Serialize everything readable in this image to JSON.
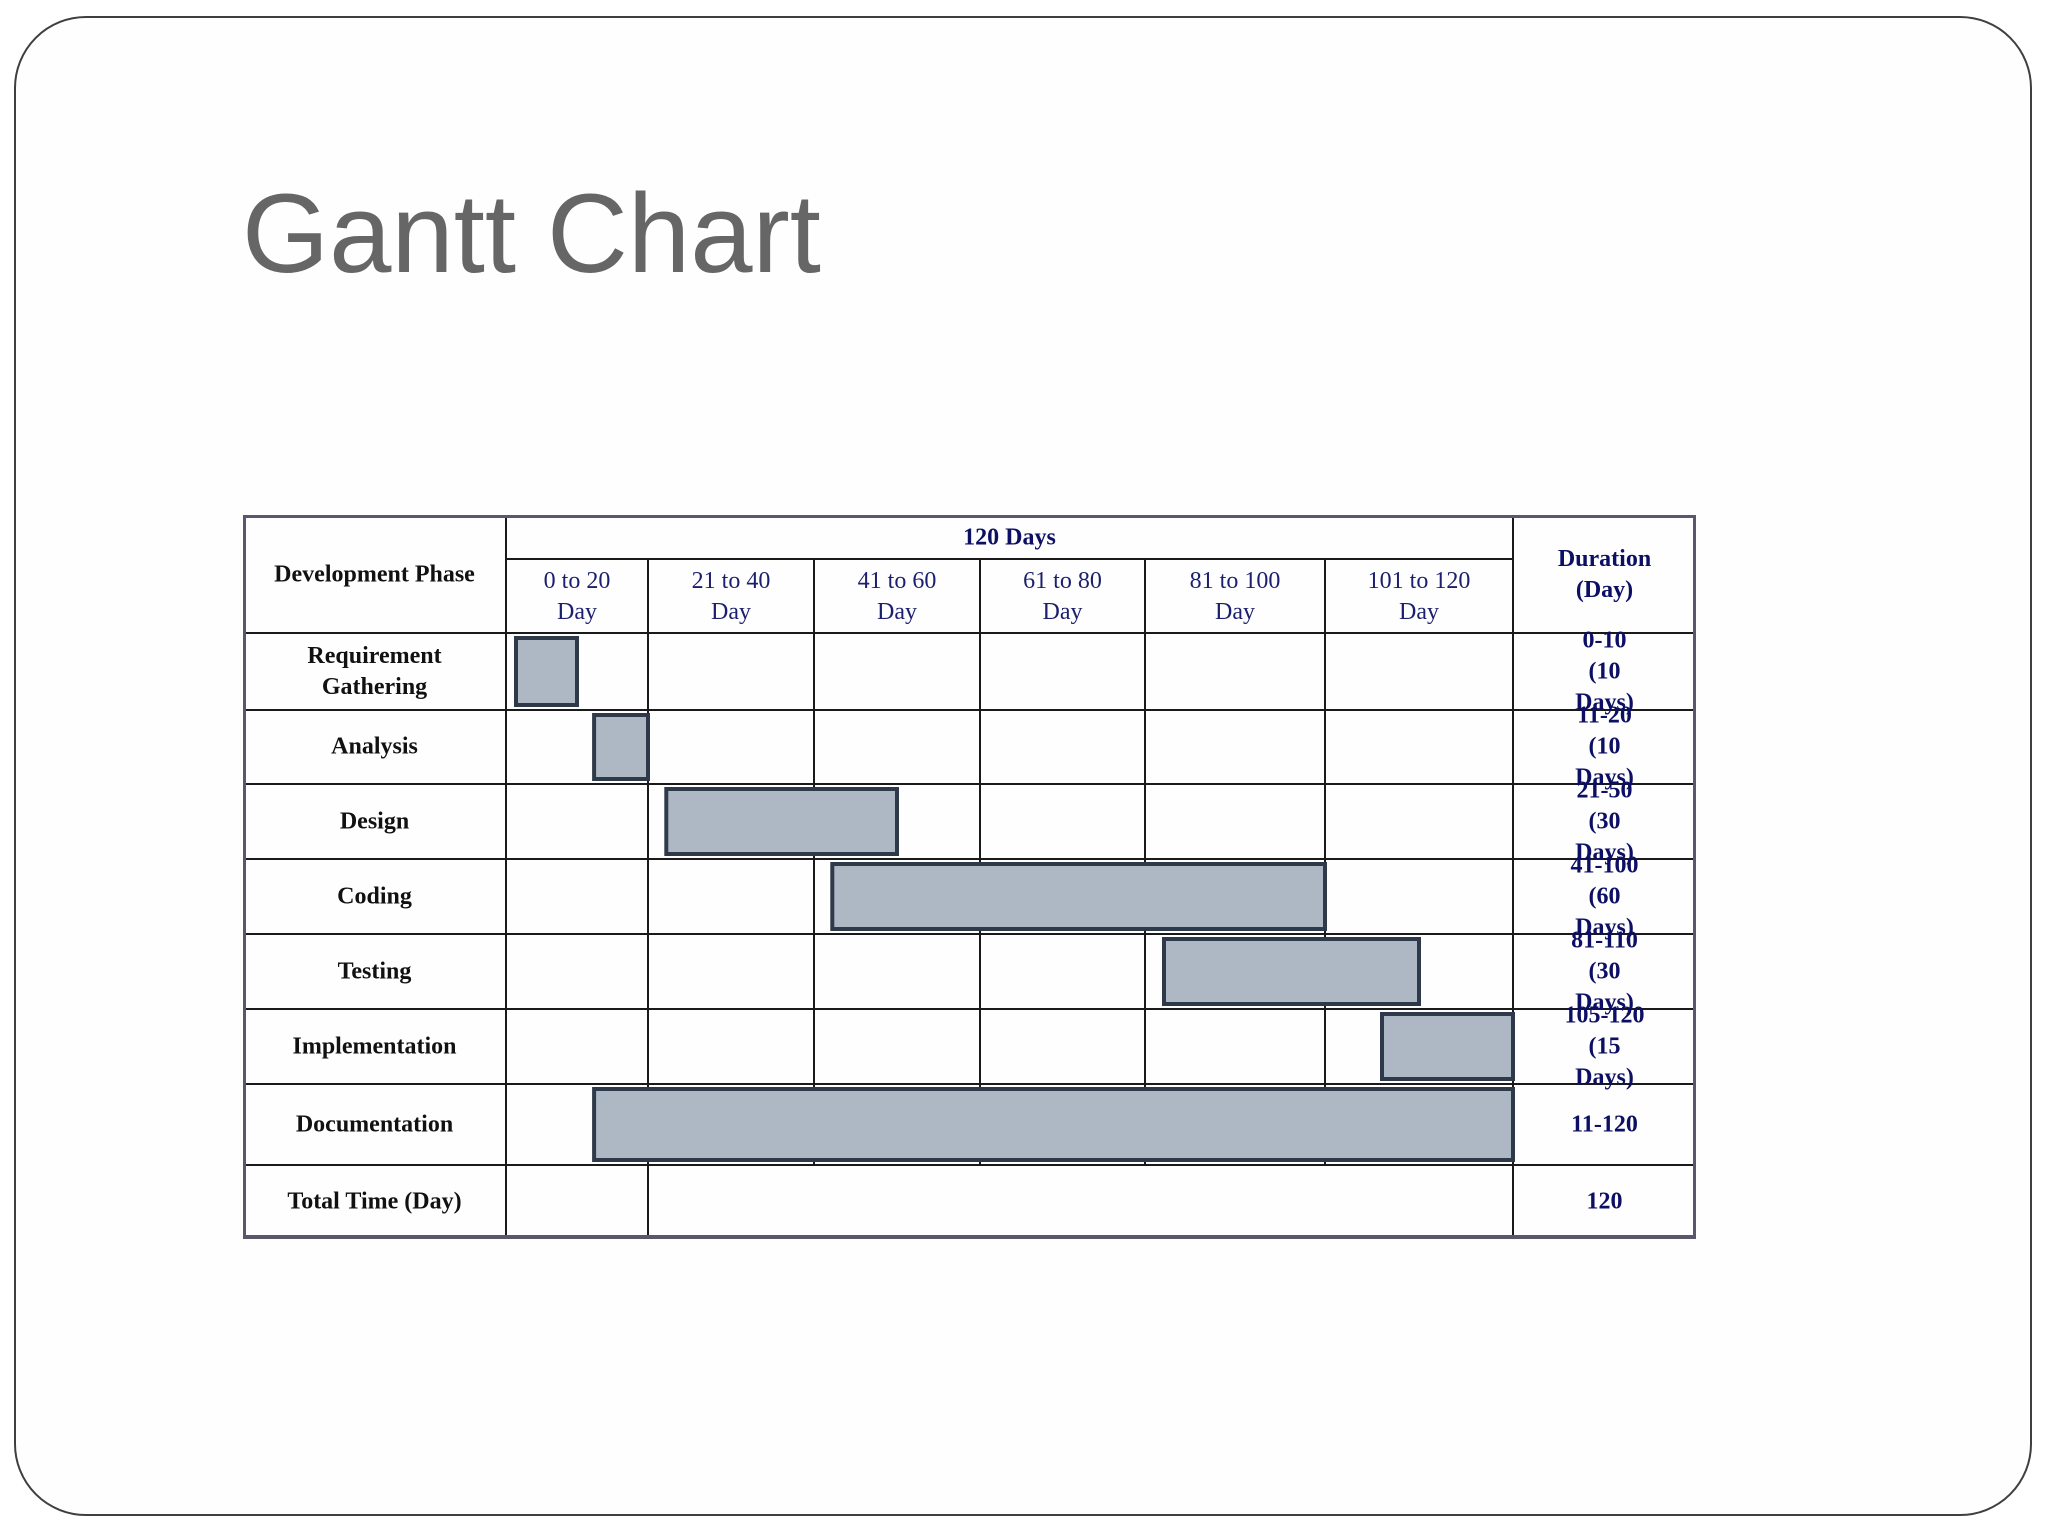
{
  "slide": {
    "title": "Gantt Chart"
  },
  "chart_data": {
    "type": "gantt",
    "header": {
      "phase_label": "Development  Phase",
      "span_label": "120 Days",
      "duration_label": "Duration\n(Day)",
      "periods": [
        "0 to 20\nDay",
        "21 to 40\nDay",
        "41 to 60\nDay",
        "61 to 80\nDay",
        "81 to 100\nDay",
        "101 to 120\nDay"
      ]
    },
    "tasks": [
      {
        "name": "Requirement\nGathering",
        "start": 0,
        "end": 10,
        "duration_label": "0-10\n(10 Days)"
      },
      {
        "name": "Analysis",
        "start": 11,
        "end": 20,
        "duration_label": "11-20\n(10 Days)"
      },
      {
        "name": "Design",
        "start": 21,
        "end": 50,
        "duration_label": "21-50\n(30 Days)"
      },
      {
        "name": "Coding",
        "start": 41,
        "end": 100,
        "duration_label": "41-100\n(60 Days)"
      },
      {
        "name": "Testing",
        "start": 81,
        "end": 110,
        "duration_label": "81-110\n(30 Days)"
      },
      {
        "name": "Implementation",
        "start": 105,
        "end": 120,
        "duration_label": "105-120\n(15 Days)"
      },
      {
        "name": "Documentation",
        "start": 11,
        "end": 120,
        "duration_label": "11-120"
      }
    ],
    "total": {
      "label": "Total Time (Day)",
      "value": "120"
    },
    "colors": {
      "bar_fill": "#aeb8c5",
      "bar_stroke": "#2e3a4a",
      "frame": "#5a566c",
      "header_text": "#0c0f63"
    }
  }
}
